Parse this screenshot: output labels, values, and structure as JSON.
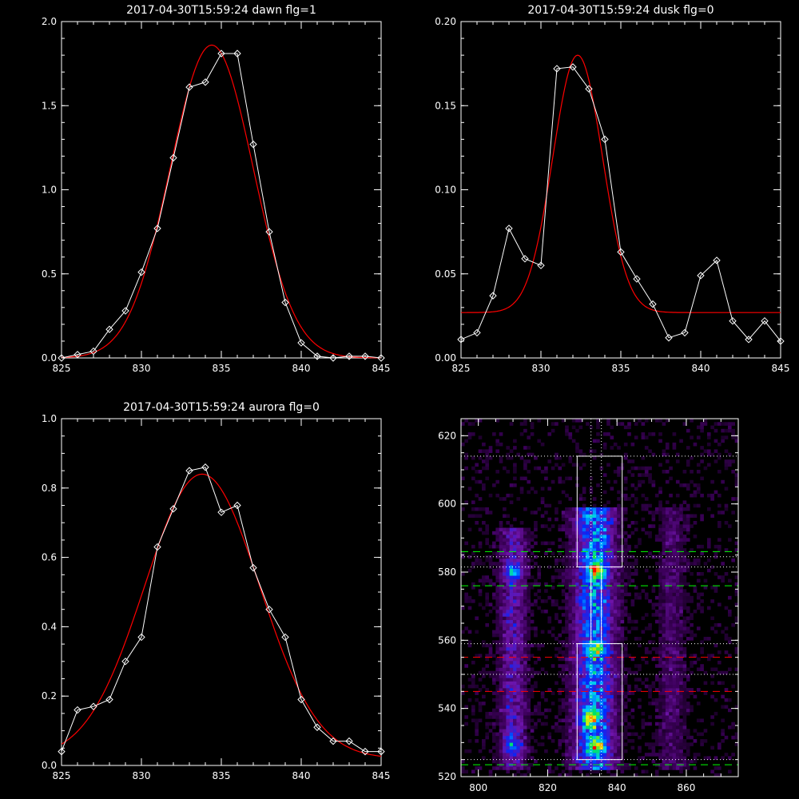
{
  "colors": {
    "background": "#000000",
    "axes": "#ffffff",
    "data_line": "#ffffff",
    "fit_line": "#ff0000",
    "green_dash": "#00ff00",
    "red_dash": "#ff0000"
  },
  "chart_data": [
    {
      "id": "dawn",
      "type": "line",
      "title": "2017-04-30T15:59:24 dawn flg=1",
      "xlim": [
        825,
        845
      ],
      "ylim": [
        0,
        2.0
      ],
      "xticks": [
        825,
        830,
        835,
        840,
        845
      ],
      "xtick_labels": [
        "825",
        "830",
        "835",
        "840",
        "845"
      ],
      "yticks": [
        0,
        0.5,
        1.0,
        1.5,
        2.0
      ],
      "ytick_labels": [
        "0.0",
        "0.5",
        "1.0",
        "1.5",
        "2.0"
      ],
      "series": [
        {
          "role": "data",
          "marker": "diamond",
          "x": [
            825,
            826,
            827,
            828,
            829,
            830,
            831,
            832,
            833,
            834,
            835,
            836,
            837,
            838,
            839,
            840,
            841,
            842,
            843,
            844,
            845
          ],
          "y": [
            0.0,
            0.02,
            0.04,
            0.17,
            0.28,
            0.51,
            0.77,
            1.19,
            1.61,
            1.64,
            1.81,
            1.81,
            1.27,
            0.75,
            0.33,
            0.09,
            0.01,
            0.0,
            0.01,
            0.01,
            0.0
          ]
        },
        {
          "role": "fit",
          "shape": "gaussian",
          "amplitude": 1.86,
          "center": 834.4,
          "sigma": 2.6,
          "baseline": 0.0
        }
      ]
    },
    {
      "id": "dusk",
      "type": "line",
      "title": "2017-04-30T15:59:24 dusk flg=0",
      "xlim": [
        825,
        845
      ],
      "ylim": [
        0,
        0.2
      ],
      "xticks": [
        825,
        830,
        835,
        840,
        845
      ],
      "xtick_labels": [
        "825",
        "830",
        "835",
        "840",
        "845"
      ],
      "yticks": [
        0,
        0.05,
        0.1,
        0.15,
        0.2
      ],
      "ytick_labels": [
        "0.00",
        "0.05",
        "0.10",
        "0.15",
        "0.20"
      ],
      "series": [
        {
          "role": "data",
          "marker": "diamond",
          "x": [
            825,
            826,
            827,
            828,
            829,
            830,
            831,
            832,
            833,
            834,
            835,
            836,
            837,
            838,
            839,
            840,
            841,
            842,
            843,
            844,
            845
          ],
          "y": [
            0.011,
            0.015,
            0.037,
            0.077,
            0.059,
            0.055,
            0.172,
            0.173,
            0.16,
            0.13,
            0.063,
            0.047,
            0.032,
            0.012,
            0.015,
            0.049,
            0.058,
            0.022,
            0.011,
            0.022,
            0.01
          ]
        },
        {
          "role": "fit",
          "shape": "gaussian",
          "amplitude": 0.153,
          "center": 832.3,
          "sigma": 1.55,
          "baseline": 0.027
        }
      ]
    },
    {
      "id": "aurora",
      "type": "line",
      "title": "2017-04-30T15:59:24 aurora flg=0",
      "xlim": [
        825,
        845
      ],
      "ylim": [
        0,
        1.0
      ],
      "xticks": [
        825,
        830,
        835,
        840,
        845
      ],
      "xtick_labels": [
        "825",
        "830",
        "835",
        "840",
        "845"
      ],
      "yticks": [
        0,
        0.2,
        0.4,
        0.6,
        0.8,
        1.0
      ],
      "ytick_labels": [
        "0.0",
        "0.2",
        "0.4",
        "0.6",
        "0.8",
        "1.0"
      ],
      "series": [
        {
          "role": "data",
          "marker": "diamond",
          "x": [
            825,
            826,
            827,
            828,
            829,
            830,
            831,
            832,
            833,
            834,
            835,
            836,
            837,
            838,
            839,
            840,
            841,
            842,
            843,
            844,
            845
          ],
          "y": [
            0.04,
            0.16,
            0.17,
            0.19,
            0.3,
            0.37,
            0.63,
            0.74,
            0.85,
            0.86,
            0.73,
            0.75,
            0.57,
            0.45,
            0.37,
            0.19,
            0.11,
            0.07,
            0.07,
            0.04,
            0.04
          ]
        },
        {
          "role": "fit",
          "shape": "gaussian",
          "amplitude": 0.82,
          "center": 833.8,
          "sigma": 3.6,
          "baseline": 0.02
        }
      ]
    },
    {
      "id": "image",
      "type": "heatmap",
      "title": "",
      "xlim": [
        795,
        875
      ],
      "ylim": [
        520,
        625
      ],
      "xticks": [
        800,
        820,
        840,
        860
      ],
      "xtick_labels": [
        "800",
        "820",
        "840",
        "860"
      ],
      "yticks": [
        520,
        540,
        560,
        580,
        600,
        620
      ],
      "ytick_labels": [
        "520",
        "540",
        "560",
        "580",
        "600",
        "620"
      ],
      "colormap": "rainbow (black-purple-blue-cyan-green-yellow-red)",
      "emission_columns": [
        {
          "center": 810,
          "width": 4,
          "y_range": [
            522,
            592
          ],
          "peak_intensity": 0.55
        },
        {
          "center": 833.5,
          "width": 6,
          "y_range": [
            522,
            598
          ],
          "peak_intensity": 1.0
        },
        {
          "center": 856,
          "width": 4,
          "y_range": [
            522,
            598
          ],
          "peak_intensity": 0.3
        }
      ],
      "hot_spots": [
        {
          "x": 834,
          "y": 581,
          "intensity": 1.0
        },
        {
          "x": 834,
          "y": 529,
          "intensity": 0.95
        },
        {
          "x": 832,
          "y": 537,
          "intensity": 0.8
        },
        {
          "x": 810,
          "y": 580,
          "intensity": 0.6
        },
        {
          "x": 810,
          "y": 529,
          "intensity": 0.55
        },
        {
          "x": 834,
          "y": 557,
          "intensity": 0.6
        }
      ],
      "boxes": [
        {
          "x": [
            828.5,
            841.5
          ],
          "y": [
            581.5,
            614
          ]
        },
        {
          "x": [
            828.5,
            841.5
          ],
          "y": [
            525,
            559
          ]
        }
      ],
      "vertical_dotted": [
        832.5,
        835.5
      ],
      "inner_box": {
        "x": [
          832.5,
          835.5
        ],
        "y": [
          559,
          581.5
        ]
      },
      "horizontal_dotted": [
        614,
        584.5,
        581.5,
        559,
        550,
        525
      ],
      "green_dashed": [
        586,
        576,
        523.5
      ],
      "red_dashed": [
        555,
        545
      ]
    }
  ]
}
